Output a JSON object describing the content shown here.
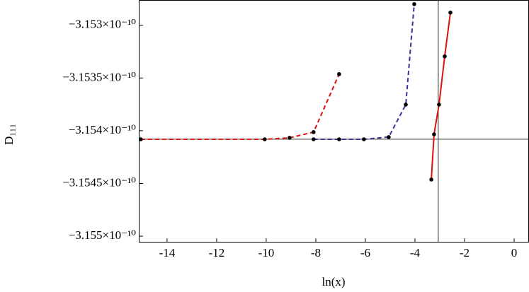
{
  "chart_data": {
    "type": "line",
    "x_label": "ln(x)",
    "y_label": "D₁₁₁",
    "xlim": [
      -15.14,
      0.6
    ],
    "ylim": [
      -3.15506e-10,
      -3.15276e-10
    ],
    "xticks": [
      -14,
      -12,
      -10,
      -8,
      -6,
      -4,
      -2,
      0
    ],
    "yticks": [
      {
        "value": -3.153e-10,
        "label": "−3.153×10⁻¹⁰"
      },
      {
        "value": -3.1535e-10,
        "label": "−3.1535×10⁻¹⁰"
      },
      {
        "value": -3.154e-10,
        "label": "−3.154×10⁻¹⁰"
      },
      {
        "value": -3.1545e-10,
        "label": "−3.1545×10⁻¹⁰"
      },
      {
        "value": -3.155e-10,
        "label": "−3.155×10⁻¹⁰"
      }
    ],
    "reference_lines": {
      "x": -3.06,
      "y": -3.15408e-10
    },
    "series": [
      {
        "color": "#dd1111",
        "dash": true,
        "x": [
          -15.06,
          -10.06,
          -9.06,
          -8.09,
          -7.06
        ],
        "values": [
          -3.154081e-10,
          -3.154081e-10,
          -3.154067e-10,
          -3.154013e-10,
          -3.153463e-10
        ]
      },
      {
        "color": "#333399",
        "dash": true,
        "x": [
          -8.09,
          -7.06,
          -6.06,
          -5.06,
          -4.37,
          -4.03
        ],
        "values": [
          -3.154081e-10,
          -3.154081e-10,
          -3.154081e-10,
          -3.15406e-10,
          -3.153752e-10,
          -3.152799e-10
        ]
      },
      {
        "color": "#dd1111",
        "dash": false,
        "x": [
          -3.34,
          -3.23,
          -3.03,
          -2.8,
          -2.57
        ],
        "values": [
          -3.154463e-10,
          -3.154034e-10,
          -3.153752e-10,
          -3.153295e-10,
          -3.152879e-10
        ]
      }
    ]
  }
}
